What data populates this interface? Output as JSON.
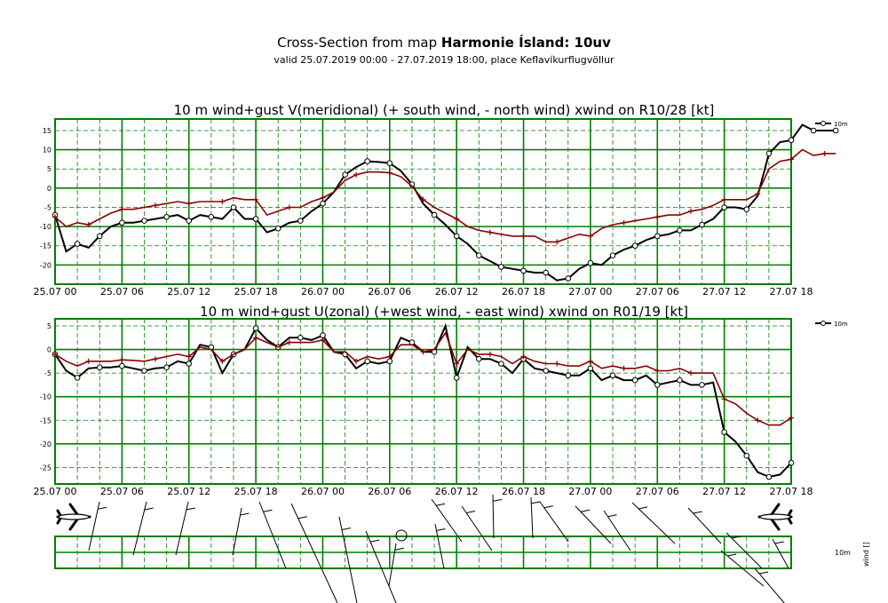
{
  "header": {
    "title_prefix": "Cross-Section from map ",
    "title_bold": "Harmonie Ísland: 10uv",
    "subtitle": "valid 25.07.2019 00:00 - 27.07.2019 18:00, place Keflavíkurflugvöllur"
  },
  "colors": {
    "grid": "#008000",
    "wind": "#000000",
    "gust": "#8b0000"
  },
  "chart_data": [
    {
      "type": "line",
      "title": "10 m wind+gust V(meridional) (+ south wind, - north wind) xwind on R10/28 [kt]",
      "x_tick_labels": [
        "25.07 00",
        "25.07 06",
        "25.07 12",
        "25.07 18",
        "26.07 00",
        "26.07 06",
        "26.07 12",
        "26.07 18",
        "27.07 00",
        "27.07 06",
        "27.07 12",
        "27.07 18"
      ],
      "y_ticks": [
        15,
        10,
        5,
        0,
        -5,
        -10,
        -15,
        -20
      ],
      "ylim": [
        -25,
        18
      ],
      "grid": true,
      "legend": {
        "position": "top-right",
        "label": "10m"
      },
      "x_hours_step": 1,
      "series": [
        {
          "name": "10m",
          "color": "#000000",
          "marker": "circle",
          "values": [
            -7,
            -16.5,
            -14.5,
            -15.5,
            -12.5,
            -10,
            -9,
            -9,
            -8.5,
            -8,
            -7.5,
            -7,
            -8.5,
            -7,
            -7.5,
            -8,
            -5,
            -8,
            -8,
            -11.5,
            -10.5,
            -9,
            -8.5,
            -6,
            -4,
            -1,
            3.5,
            5.5,
            7,
            6.8,
            6.5,
            4.5,
            1,
            -4,
            -7,
            -9.5,
            -12.5,
            -14.5,
            -17.5,
            -19,
            -20.5,
            -21,
            -21.5,
            -22,
            -22,
            -24,
            -23.5,
            -21,
            -19.5,
            -20,
            -17.5,
            -16,
            -15,
            -13.5,
            -12.5,
            -12,
            -11,
            -11,
            -9.5,
            -8,
            -5,
            -5,
            -5.5,
            -2,
            9,
            12,
            12.5,
            16.5,
            15,
            15,
            15
          ]
        },
        {
          "name": "gust",
          "color": "#8b0000",
          "marker": "plus",
          "values": [
            -7.5,
            -10,
            -9,
            -9.5,
            -8,
            -6.5,
            -5.5,
            -5.5,
            -5,
            -4.5,
            -4,
            -3.5,
            -4,
            -3.5,
            -3.5,
            -3.5,
            -2.5,
            -3,
            -3,
            -7,
            -6,
            -5,
            -5,
            -3.5,
            -2.5,
            -1,
            2,
            3.5,
            4.2,
            4.2,
            4,
            3,
            0.5,
            -3,
            -5,
            -6.5,
            -8,
            -10,
            -11,
            -11.5,
            -12,
            -12.5,
            -12.5,
            -12.5,
            -14,
            -14,
            -13,
            -12,
            -12.5,
            -10.5,
            -9.5,
            -9,
            -8.5,
            -8,
            -7.5,
            -7,
            -7,
            -6,
            -5.5,
            -4.5,
            -3,
            -3,
            -3,
            -1.5,
            5,
            7,
            7.5,
            10,
            8.5,
            9,
            9
          ]
        }
      ]
    },
    {
      "type": "line",
      "title": "10 m wind+gust U(zonal) (+west wind, - east wind) xwind on R01/19 [kt]",
      "x_tick_labels": [
        "25.07 00",
        "25.07 06",
        "25.07 12",
        "25.07 18",
        "26.07 00",
        "26.07 06",
        "26.07 12",
        "26.07 18",
        "27.07 00",
        "27.07 06",
        "27.07 12",
        "27.07 18"
      ],
      "y_ticks": [
        5,
        0,
        -5,
        -10,
        -15,
        -20,
        -25
      ],
      "ylim": [
        -28.5,
        6.5
      ],
      "grid": true,
      "legend": {
        "position": "top-right",
        "label": "10m"
      },
      "x_hours_step": 1,
      "series": [
        {
          "name": "10m",
          "color": "#000000",
          "marker": "circle",
          "values": [
            -1,
            -4.5,
            -6,
            -4,
            -3.8,
            -3.8,
            -3.5,
            -4,
            -4.5,
            -4,
            -3.8,
            -2.5,
            -3,
            1,
            0.5,
            -5,
            -1,
            0,
            4.5,
            2,
            0.5,
            2.5,
            2.5,
            2,
            3,
            -0.5,
            -1,
            -4,
            -2.5,
            -3,
            -2.5,
            2.5,
            1.5,
            -0.5,
            -0.5,
            5,
            -6,
            0.5,
            -2,
            -2,
            -3,
            -5,
            -2,
            -4,
            -4.5,
            -5,
            -5.5,
            -5.5,
            -4,
            -6.5,
            -5.5,
            -6.5,
            -6.5,
            -5.5,
            -7.5,
            -7,
            -6.5,
            -7.5,
            -7.5,
            -7,
            -17.5,
            -19.5,
            -22.5,
            -26,
            -27,
            -26.5,
            -24
          ]
        },
        {
          "name": "gust",
          "color": "#8b0000",
          "marker": "plus",
          "values": [
            -1,
            -2.5,
            -3.5,
            -2.5,
            -2.5,
            -2.5,
            -2.2,
            -2.3,
            -2.5,
            -2,
            -1.5,
            -1,
            -1.5,
            0.5,
            0,
            -2.5,
            -1,
            0,
            2.5,
            1.5,
            0.5,
            1.5,
            1.5,
            1.5,
            2,
            -0.5,
            -0.5,
            -2.5,
            -1.5,
            -2,
            -1.5,
            1,
            1,
            -0.5,
            0,
            3.5,
            -3,
            0,
            -1,
            -1,
            -1.5,
            -3,
            -1.5,
            -2.5,
            -3,
            -3,
            -3.5,
            -3.5,
            -2.5,
            -4,
            -3.5,
            -4,
            -4,
            -3.5,
            -4.5,
            -4.5,
            -4,
            -5,
            -5,
            -5,
            -10.5,
            -11.5,
            -13.5,
            -15,
            -16,
            -16,
            -14.5
          ]
        }
      ]
    },
    {
      "type": "barbs",
      "title": "",
      "x_tick_labels": [],
      "legend": {
        "label": "10m",
        "axis_label": "wind [] "
      }
    }
  ]
}
